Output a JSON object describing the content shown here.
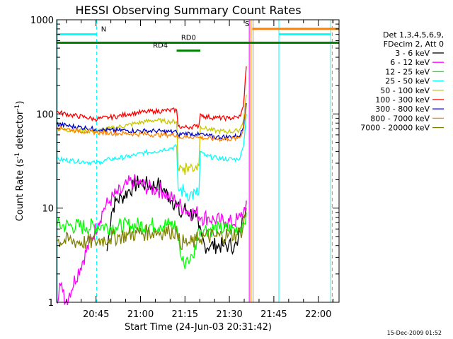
{
  "chart_data": {
    "type": "line",
    "title": "HESSI Observing Summary Count Rates",
    "xlabel": "Start Time (24-Jun-03 20:31:42)",
    "ylabel_main": "Count Rate (s",
    "ylabel_sup1": "-1",
    "ylabel_mid": " detector",
    "ylabel_sup2": "-1",
    "ylabel_end": ")",
    "yscale": "log",
    "ylim": [
      1,
      1000
    ],
    "xlim_minutes": [
      0,
      95.3
    ],
    "x_ticks": [
      {
        "label": "20:45",
        "minute": 13.3
      },
      {
        "label": "21:00",
        "minute": 28.3
      },
      {
        "label": "21:15",
        "minute": 43.3
      },
      {
        "label": "21:30",
        "minute": 58.3
      },
      {
        "label": "21:45",
        "minute": 73.3
      },
      {
        "label": "22:00",
        "minute": 88.3
      }
    ],
    "y_ticks": [
      {
        "label": "1",
        "value": 1
      },
      {
        "label": "10",
        "value": 10
      },
      {
        "label": "100",
        "value": 100
      },
      {
        "label": "1000",
        "value": 1000
      }
    ],
    "footer": "15-Dec-2009 01:52",
    "legend_header": [
      "Det 1,3,4,5,6,9,",
      "FDecim 2, Att 0"
    ],
    "series": [
      {
        "name": "3 - 6 keV",
        "color": "#000000",
        "points": [
          [
            17,
            3.5
          ],
          [
            18.5,
            9
          ],
          [
            20,
            12
          ],
          [
            22,
            13
          ],
          [
            24,
            15
          ],
          [
            26,
            17
          ],
          [
            28,
            19
          ],
          [
            30,
            18
          ],
          [
            32,
            17
          ],
          [
            34,
            18
          ],
          [
            36,
            16
          ],
          [
            38,
            13
          ],
          [
            39,
            12
          ],
          [
            40.5,
            11
          ],
          [
            42,
            8
          ],
          [
            43,
            10
          ],
          [
            45,
            9
          ],
          [
            47,
            8
          ],
          [
            48,
            6
          ],
          [
            49,
            5
          ],
          [
            50,
            4
          ],
          [
            52,
            4
          ],
          [
            54,
            4
          ],
          [
            56,
            4
          ],
          [
            58,
            4
          ],
          [
            60,
            4
          ],
          [
            61,
            4
          ],
          [
            62,
            6
          ],
          [
            63,
            8
          ],
          [
            64,
            12
          ]
        ]
      },
      {
        "name": "6 - 12 keV",
        "color": "#ff00ff",
        "points": [
          [
            0,
            1
          ],
          [
            1,
            1.6
          ],
          [
            2,
            1.3
          ],
          [
            3,
            1
          ],
          [
            14,
            7
          ],
          [
            16,
            10
          ],
          [
            18,
            12
          ],
          [
            20,
            14
          ],
          [
            22,
            15
          ],
          [
            24,
            18
          ],
          [
            26,
            19
          ],
          [
            28,
            18
          ],
          [
            30,
            17
          ],
          [
            32,
            16
          ],
          [
            34,
            16
          ],
          [
            36,
            15
          ],
          [
            38,
            13
          ],
          [
            40,
            12
          ],
          [
            41,
            11
          ],
          [
            43,
            10
          ],
          [
            45,
            9
          ],
          [
            47,
            9
          ],
          [
            49,
            8
          ],
          [
            51,
            8
          ],
          [
            53,
            7.5
          ],
          [
            55,
            7.3
          ],
          [
            57,
            7.2
          ],
          [
            59,
            7
          ],
          [
            61,
            7.5
          ],
          [
            62,
            8
          ],
          [
            63,
            9
          ],
          [
            64,
            12
          ]
        ]
      },
      {
        "name": "12 - 25 keV",
        "color": "#00ff00",
        "points": [
          [
            0,
            6.5
          ],
          [
            5,
            6.5
          ],
          [
            10,
            6.3
          ],
          [
            15,
            6.5
          ],
          [
            20,
            6.3
          ],
          [
            25,
            6.5
          ],
          [
            30,
            6.6
          ],
          [
            35,
            6.6
          ],
          [
            38,
            6.7
          ],
          [
            40.5,
            6.5
          ],
          [
            41,
            5
          ],
          [
            42,
            3
          ],
          [
            43,
            2.5
          ],
          [
            44,
            3
          ],
          [
            45,
            2.8
          ],
          [
            46,
            3
          ],
          [
            48,
            6
          ],
          [
            50,
            6
          ],
          [
            55,
            6
          ],
          [
            60,
            6
          ],
          [
            62,
            6.2
          ],
          [
            63,
            7
          ],
          [
            64,
            9
          ]
        ]
      },
      {
        "name": "25 - 50 keV",
        "color": "#00ffff",
        "points": [
          [
            0,
            33
          ],
          [
            5,
            32
          ],
          [
            10,
            31
          ],
          [
            13,
            30
          ],
          [
            15,
            31
          ],
          [
            18,
            33
          ],
          [
            21,
            34
          ],
          [
            24,
            35
          ],
          [
            27,
            37
          ],
          [
            30,
            39
          ],
          [
            33,
            40
          ],
          [
            36,
            42
          ],
          [
            38,
            43
          ],
          [
            40.5,
            45
          ],
          [
            41,
            16
          ],
          [
            43,
            15
          ],
          [
            45,
            14
          ],
          [
            47,
            14
          ],
          [
            48,
            14.5
          ],
          [
            48.5,
            40
          ],
          [
            50,
            36
          ],
          [
            54,
            34
          ],
          [
            58,
            33
          ],
          [
            61,
            33
          ],
          [
            62,
            35
          ],
          [
            63,
            45
          ],
          [
            64,
            100
          ]
        ]
      },
      {
        "name": "50 - 100 keV",
        "color": "#c8c800",
        "points": [
          [
            0,
            70
          ],
          [
            5,
            67
          ],
          [
            10,
            66
          ],
          [
            13,
            65
          ],
          [
            15,
            67
          ],
          [
            18,
            70
          ],
          [
            21,
            73
          ],
          [
            24,
            76
          ],
          [
            27,
            80
          ],
          [
            30,
            83
          ],
          [
            33,
            86
          ],
          [
            36,
            84
          ],
          [
            38,
            83
          ],
          [
            40.5,
            83
          ],
          [
            41,
            27
          ],
          [
            43,
            27
          ],
          [
            45,
            27
          ],
          [
            47,
            28
          ],
          [
            48,
            28
          ],
          [
            48.5,
            75
          ],
          [
            50,
            70
          ],
          [
            54,
            66
          ],
          [
            58,
            65
          ],
          [
            61,
            66
          ],
          [
            62,
            70
          ],
          [
            63,
            85
          ],
          [
            64,
            160
          ]
        ]
      },
      {
        "name": "100 - 300 keV",
        "color": "#ff0000",
        "points": [
          [
            0,
            105
          ],
          [
            5,
            97
          ],
          [
            10,
            92
          ],
          [
            13,
            88
          ],
          [
            15,
            90
          ],
          [
            18,
            92
          ],
          [
            21,
            95
          ],
          [
            24,
            100
          ],
          [
            27,
            103
          ],
          [
            30,
            105
          ],
          [
            33,
            107
          ],
          [
            36,
            108
          ],
          [
            38,
            109
          ],
          [
            40.5,
            110
          ],
          [
            41,
            74
          ],
          [
            43,
            72
          ],
          [
            45,
            73
          ],
          [
            47,
            74
          ],
          [
            48,
            75
          ],
          [
            48.5,
            100
          ],
          [
            50,
            94
          ],
          [
            54,
            91
          ],
          [
            58,
            90
          ],
          [
            61,
            92
          ],
          [
            62,
            95
          ],
          [
            63,
            120
          ],
          [
            64,
            320
          ]
        ]
      },
      {
        "name": "300 - 800 keV",
        "color": "#0000cc",
        "points": [
          [
            0,
            78
          ],
          [
            5,
            74
          ],
          [
            10,
            71
          ],
          [
            13,
            69
          ],
          [
            15,
            68
          ],
          [
            18,
            67
          ],
          [
            21,
            67
          ],
          [
            24,
            67
          ],
          [
            27,
            66
          ],
          [
            30,
            66
          ],
          [
            33,
            66
          ],
          [
            36,
            65
          ],
          [
            38,
            65
          ],
          [
            40.5,
            64
          ],
          [
            41,
            60
          ],
          [
            43,
            62
          ],
          [
            45,
            62
          ],
          [
            47,
            61
          ],
          [
            48,
            60
          ],
          [
            48.5,
            62
          ],
          [
            50,
            59
          ],
          [
            54,
            57
          ],
          [
            58,
            57
          ],
          [
            61,
            58
          ],
          [
            62,
            60
          ],
          [
            63,
            72
          ],
          [
            64,
            130
          ]
        ]
      },
      {
        "name": "800 - 7000 keV",
        "color": "#ff8000",
        "points": [
          [
            0,
            72
          ],
          [
            5,
            68
          ],
          [
            10,
            65
          ],
          [
            13,
            64
          ],
          [
            15,
            63
          ],
          [
            18,
            63
          ],
          [
            21,
            62
          ],
          [
            24,
            62
          ],
          [
            27,
            61
          ],
          [
            30,
            61
          ],
          [
            33,
            60
          ],
          [
            36,
            60
          ],
          [
            38,
            60
          ],
          [
            40.5,
            60
          ],
          [
            41,
            56
          ],
          [
            43,
            57
          ],
          [
            45,
            57
          ],
          [
            47,
            57
          ],
          [
            48,
            56
          ],
          [
            48.5,
            57
          ],
          [
            50,
            55
          ],
          [
            54,
            54
          ],
          [
            58,
            54
          ],
          [
            61,
            55
          ],
          [
            62,
            57
          ],
          [
            63,
            68
          ],
          [
            64,
            120
          ]
        ]
      },
      {
        "name": "7000 - 20000 keV",
        "color": "#808000",
        "points": [
          [
            0,
            4.5
          ],
          [
            5,
            4.5
          ],
          [
            10,
            4.3
          ],
          [
            13,
            4.4
          ],
          [
            15,
            4.6
          ],
          [
            18,
            4.8
          ],
          [
            21,
            5
          ],
          [
            24,
            5.2
          ],
          [
            27,
            5.4
          ],
          [
            30,
            5.5
          ],
          [
            33,
            5.6
          ],
          [
            36,
            5.6
          ],
          [
            38,
            5.7
          ],
          [
            40.5,
            5.7
          ],
          [
            41,
            4.5
          ],
          [
            43,
            4.3
          ],
          [
            45,
            4.2
          ],
          [
            47,
            4.5
          ],
          [
            48,
            4.8
          ],
          [
            50,
            5
          ],
          [
            54,
            5
          ],
          [
            58,
            5.2
          ],
          [
            61,
            5.3
          ],
          [
            62,
            5.5
          ],
          [
            63,
            6.5
          ],
          [
            64,
            10
          ]
        ]
      }
    ],
    "flag_bars": [
      {
        "label": "N",
        "color": "#00ffff",
        "y": 700,
        "segments": [
          [
            0,
            13.5
          ]
        ],
        "label_minute": 15
      },
      {
        "label": "RD0",
        "color": "#008000",
        "y": 570,
        "segments": [
          [
            0,
            95.3
          ]
        ],
        "label_minute": 42
      },
      {
        "label": "RD4",
        "color": "#008000",
        "y": 470,
        "segments": [
          [
            40.5,
            48.5
          ]
        ],
        "label_minute": 32.5
      },
      {
        "label": "S",
        "color": "#ff8000",
        "y": 800,
        "segments": [
          [
            66,
            95.3
          ]
        ],
        "label_minute": 63.5
      },
      {
        "label": "",
        "color": "#00ffff",
        "y": 700,
        "segments": [
          [
            75,
            92.5
          ]
        ],
        "label_minute": 0
      }
    ],
    "vlines": [
      {
        "minute": 0.3,
        "color": "#00ffff",
        "style": "solid"
      },
      {
        "minute": 13.5,
        "color": "#00ffff",
        "style": "dashed"
      },
      {
        "minute": 65,
        "color": "#ff00ff",
        "style": "solid"
      },
      {
        "minute": 65.6,
        "color": "#ff8000",
        "style": "solid"
      },
      {
        "minute": 66.3,
        "color": "#ff8000",
        "style": "solid"
      },
      {
        "minute": 75,
        "color": "#00ffff",
        "style": "solid"
      },
      {
        "minute": 92.5,
        "color": "#00ffff",
        "style": "solid"
      },
      {
        "minute": 93,
        "color": "#ff8000",
        "style": "dashed"
      }
    ]
  }
}
